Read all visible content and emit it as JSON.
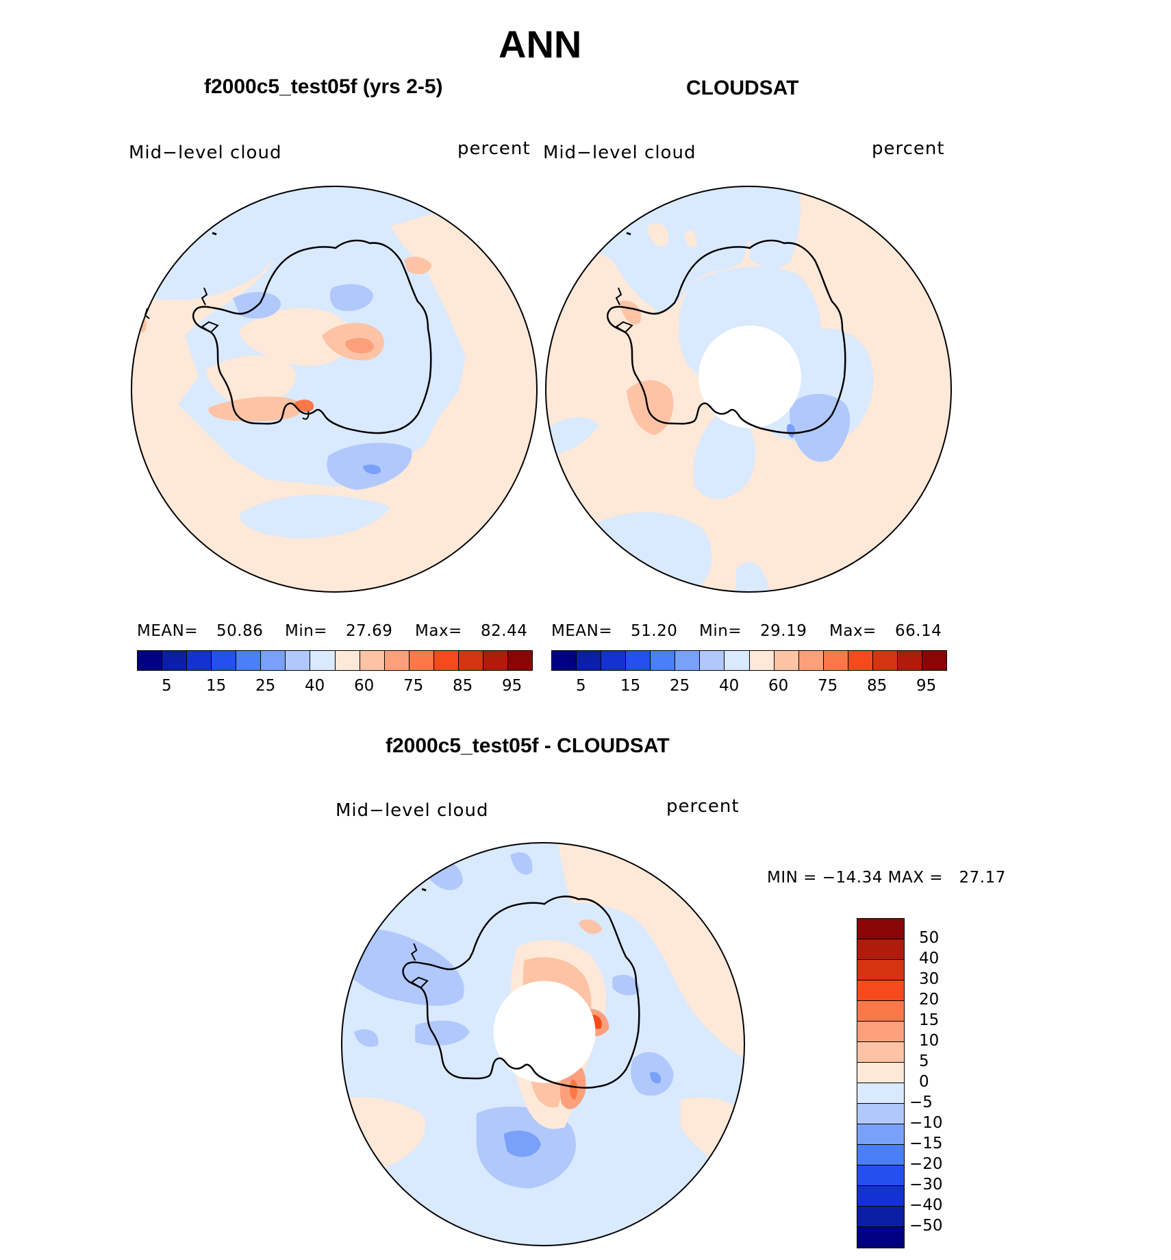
{
  "page_title": "ANN",
  "panels": [
    {
      "title": "f2000c5_test05f (yrs 2-5)",
      "left_label": "Mid−level cloud",
      "right_label": "percent",
      "stats": [
        {
          "label": "MEAN=",
          "value": "50.86"
        },
        {
          "label": "Min=",
          "value": "27.69"
        },
        {
          "label": "Max=",
          "value": "82.44"
        }
      ]
    },
    {
      "title": "CLOUDSAT",
      "left_label": "Mid−level cloud",
      "right_label": "percent",
      "stats": [
        {
          "label": "MEAN=",
          "value": "51.20"
        },
        {
          "label": "Min=",
          "value": "29.19"
        },
        {
          "label": "Max=",
          "value": "66.14"
        }
      ]
    }
  ],
  "colorbar_top": {
    "colors": [
      "#000080",
      "#0a1fa6",
      "#1432d2",
      "#2450f0",
      "#4a7ff8",
      "#7aa1fa",
      "#b0c8fc",
      "#d9e9fe",
      "#fee8d8",
      "#fdc3a4",
      "#fca07c",
      "#fb7848",
      "#f64a1c",
      "#d63410",
      "#b01c0c",
      "#8a0606"
    ],
    "tick_labels": [
      "5",
      "15",
      "25",
      "40",
      "60",
      "75",
      "85",
      "95"
    ]
  },
  "diff_panel": {
    "title": "f2000c5_test05f - CLOUDSAT",
    "left_label": "Mid−level cloud",
    "right_label": "percent",
    "minmax": "MIN = −14.34 MAX =   27.17",
    "colorbar": {
      "colors_top_to_bottom": [
        "#8a0606",
        "#b01c0c",
        "#d63410",
        "#f64a1c",
        "#fb7848",
        "#fca07c",
        "#fdc3a4",
        "#fee8d8",
        "#d9e9fe",
        "#b0c8fc",
        "#7aa1fa",
        "#4a7ff8",
        "#2450f0",
        "#1432d2",
        "#0a1fa6",
        "#000080"
      ],
      "tick_labels": [
        "50",
        "40",
        "30",
        "20",
        "15",
        "10",
        "5",
        "0",
        "−5",
        "−10",
        "−15",
        "−20",
        "−30",
        "−40",
        "−50"
      ]
    }
  }
}
